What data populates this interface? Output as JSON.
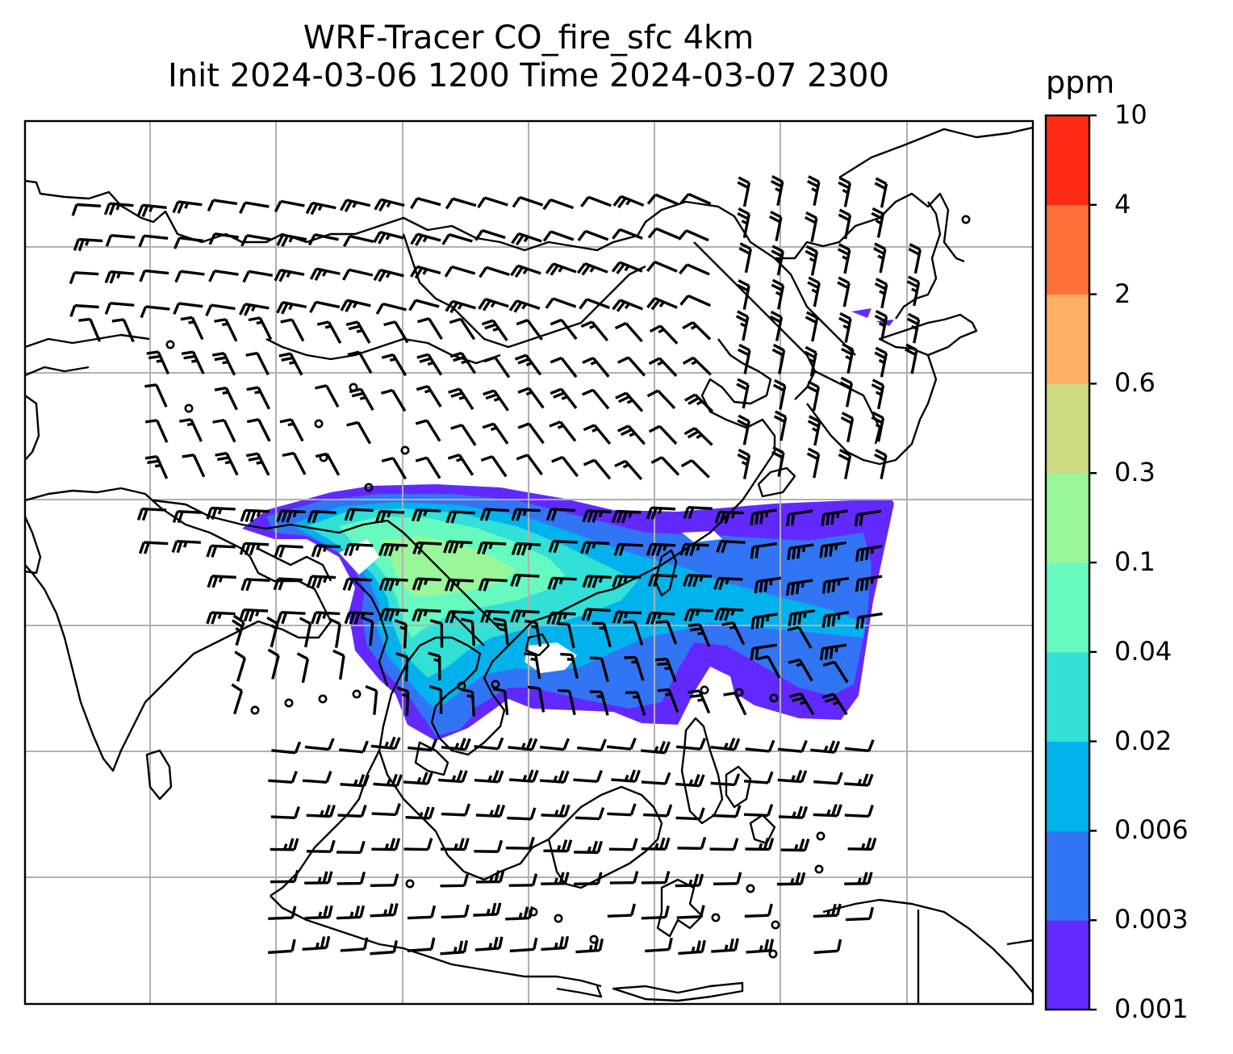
{
  "title": {
    "line1": "WRF-Tracer CO_fire_sfc 4km",
    "line2": "Init 2024-03-06 1200 Time 2024-03-07 2300"
  },
  "colorbar": {
    "unit": "ppm",
    "levels": [
      "0.001",
      "0.003",
      "0.006",
      "0.02",
      "0.04",
      "0.1",
      "0.3",
      "0.6",
      "2",
      "4",
      "10"
    ],
    "colors": [
      "#6229ff",
      "#3275f4",
      "#02b2ec",
      "#32e0d6",
      "#66fac1",
      "#99f79a",
      "#ceda82",
      "#ffae64",
      "#ff713b",
      "#ff2b15"
    ]
  },
  "map": {
    "gridlines": true,
    "colors": {
      "grid": "#b0b0b0",
      "coast": "#000000",
      "barb": "#000000"
    },
    "wind_symbol": "wind-barb-icon"
  }
}
